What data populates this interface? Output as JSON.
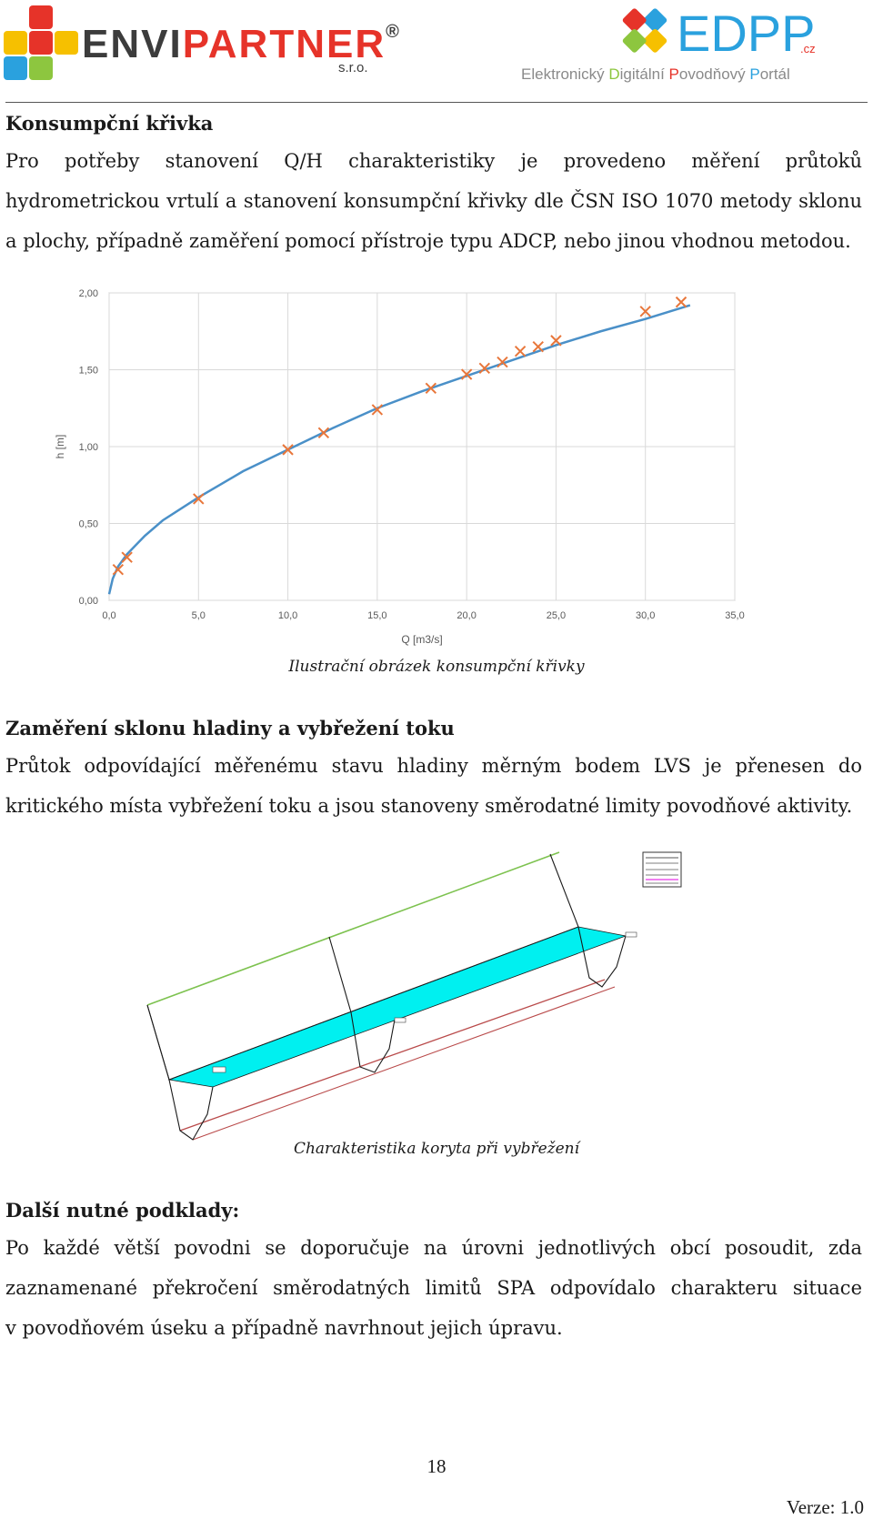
{
  "header": {
    "left_logo": {
      "text_main": "ENVI",
      "text_accent": "PARTNER",
      "reg": "®",
      "suffix": "s.r.o."
    },
    "right_logo": {
      "name": "EDPP",
      "domain": ".cz",
      "tagline": [
        "Elektronický ",
        "D",
        "igitální ",
        "P",
        "ovodňový ",
        "P",
        "ortál"
      ]
    },
    "colors": {
      "logo_red": "#e63329",
      "logo_yellow": "#f6c000",
      "logo_green": "#8dc63f",
      "logo_blue": "#2aa1de",
      "logo_dark": "#3c3c3c"
    }
  },
  "section1": {
    "title": "Konsumpční křivka",
    "lines": [
      "Pro potřeby stanovení Q/H charakteristiky je provedeno měření průtoků",
      "hydrometrickou vrtulí a stanovení konsumpční křivky dle ČSN ISO 1070 metody sklonu",
      "a plochy, případně zaměření pomocí přístroje typu ADCP, nebo jinou vhodnou metodou."
    ]
  },
  "chart_data": {
    "type": "scatter",
    "xlabel": "Q [m3/s]",
    "ylabel": "h [m]",
    "xlim": [
      0,
      35
    ],
    "ylim": [
      0,
      2
    ],
    "x_ticks": [
      "0,0",
      "5,0",
      "10,0",
      "15,0",
      "20,0",
      "25,0",
      "30,0",
      "35,0"
    ],
    "y_ticks": [
      "0,00",
      "0,50",
      "1,00",
      "1,50",
      "2,00"
    ],
    "grid": true,
    "series": [
      {
        "type": "line",
        "color": "#4a90c8",
        "x": [
          0.0,
          0.2,
          0.5,
          1.0,
          2.0,
          3.0,
          5.0,
          7.5,
          10.0,
          12.5,
          15.0,
          17.5,
          20.0,
          22.5,
          25.0,
          27.5,
          30.0,
          32.5
        ],
        "y": [
          0.04,
          0.14,
          0.22,
          0.3,
          0.42,
          0.52,
          0.67,
          0.84,
          0.98,
          1.12,
          1.25,
          1.36,
          1.46,
          1.56,
          1.66,
          1.75,
          1.83,
          1.92
        ]
      },
      {
        "type": "scatter",
        "marker": "x",
        "color": "#e8763a",
        "x": [
          0.5,
          1.0,
          5.0,
          10.0,
          12.0,
          15.0,
          18.0,
          20.0,
          21.0,
          22.0,
          23.0,
          24.0,
          25.0,
          30.0,
          32.0
        ],
        "y": [
          0.2,
          0.28,
          0.66,
          0.98,
          1.09,
          1.24,
          1.38,
          1.47,
          1.51,
          1.55,
          1.62,
          1.65,
          1.69,
          1.88,
          1.94
        ]
      }
    ]
  },
  "caption1": "Ilustrační obrázek konsumpční křivky",
  "section2": {
    "title": "Zaměření sklonu hladiny a vybřežení toku",
    "lines": [
      "Průtok odpovídající měřenému stavu hladiny měrným bodem LVS je přenesen do",
      "kritického místa vybřežení toku a jsou stanoveny směrodatné limity povodňové aktivity."
    ]
  },
  "figure2": {
    "colors": {
      "water": "#00f0f0",
      "top_bank": "#7dc24f",
      "bottom_bank": "#b94a4a",
      "legend_accent": "#e000e0"
    }
  },
  "caption2": "Charakteristika koryta při vybřežení",
  "section3": {
    "title": "Další nutné podklady:",
    "lines": [
      "Po každé větší povodni se doporučuje na úrovni jednotlivých obcí posoudit, zda",
      "zaznamenané překročení směrodatných limitů SPA odpovídalo charakteru situace",
      "v povodňovém úseku a případně navrhnout jejich úpravu."
    ]
  },
  "footer": {
    "page_number": "18",
    "version": "Verze: 1.0"
  }
}
